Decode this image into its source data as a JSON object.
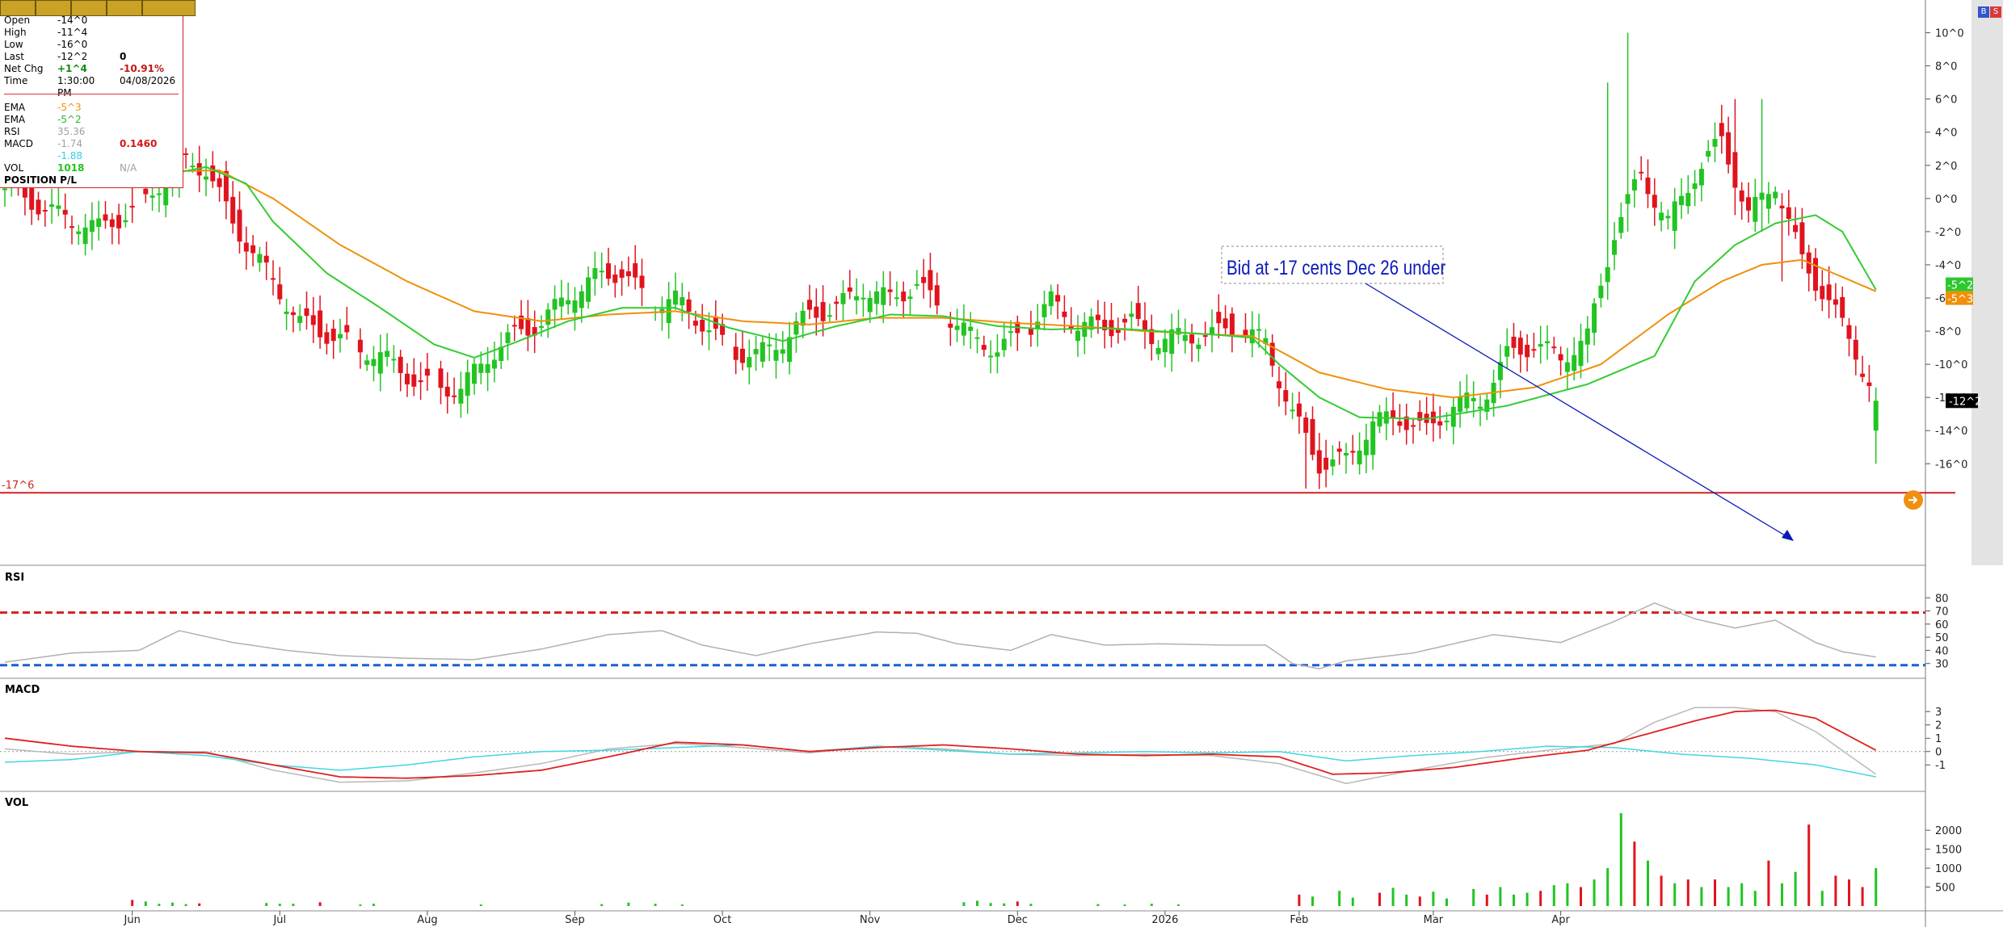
{
  "toolbar_buttons": [
    "",
    "",
    "",
    "",
    ""
  ],
  "top_right_buttons": [
    "B",
    "S"
  ],
  "quote": {
    "open": {
      "label": "Open",
      "value": "-14^0"
    },
    "high": {
      "label": "High",
      "value": "-11^4"
    },
    "low": {
      "label": "Low",
      "value": "-16^0"
    },
    "last": {
      "label": "Last",
      "value": "-12^2",
      "value2": "0"
    },
    "net_chg": {
      "label": "Net Chg",
      "value": "+1^4",
      "value2": "-10.91%"
    },
    "time": {
      "label": "Time",
      "value": "1:30:00 PM",
      "value2": "04/08/2026"
    },
    "ema1": {
      "label": "EMA",
      "value": "-5^3"
    },
    "ema2": {
      "label": "EMA",
      "value": "-5^2"
    },
    "rsi": {
      "label": "RSI",
      "value": "35.36"
    },
    "macd": {
      "label": "MACD",
      "value": "-1.74",
      "value2": "0.1460"
    },
    "macd_signal": {
      "value": "-1.88"
    },
    "vol": {
      "label": "VOL",
      "value": "1018",
      "value2": "N/A"
    },
    "position_pl": "POSITION P/L"
  },
  "colors": {
    "up": "#22c422",
    "down": "#e0141e",
    "ema_fast": "#33cc33",
    "ema_slow": "#f0900a",
    "macd": "#e02020",
    "signal": "#40d8e0",
    "hist": "#b8b8b8",
    "rsi": "#b0b0b0",
    "annotation": "#0a1ab8",
    "hline": "#d42020"
  },
  "chart_data": {
    "type": "candlestick",
    "x_labels": [
      "Jun",
      "Jul",
      "Aug",
      "Sep",
      "Oct",
      "Nov",
      "Dec",
      "2026",
      "Feb",
      "Mar",
      "Apr"
    ],
    "price_axis": {
      "ticks": [
        "10^0",
        "8^0",
        "6^0",
        "4^0",
        "2^0",
        "0^0",
        "-2^0",
        "-4^0",
        "-6^0",
        "-8^0",
        "-10^0",
        "-12^0",
        "-14^0",
        "-16^0"
      ],
      "range": [
        -19.2,
        11.0
      ]
    },
    "badges": {
      "last": "-12^2",
      "ema_fast": "-5^2",
      "ema_slow": "-5^3"
    },
    "order_line": {
      "label": "-17^6",
      "value": -17.75
    },
    "annotation": {
      "text": "Bid at -17 cents Dec 26 under"
    },
    "close_path": [
      [
        0,
        0.6
      ],
      [
        8,
        -1
      ],
      [
        14,
        -1.8
      ],
      [
        20,
        -0.6
      ],
      [
        26,
        2.4
      ],
      [
        30,
        1.8
      ],
      [
        34,
        -1.5
      ],
      [
        40,
        -5
      ],
      [
        44,
        -7.5
      ],
      [
        50,
        -8.5
      ],
      [
        56,
        -9.5
      ],
      [
        62,
        -11.2
      ],
      [
        68,
        -11.5
      ],
      [
        72,
        -9.5
      ],
      [
        76,
        -8.2
      ],
      [
        80,
        -7.5
      ],
      [
        84,
        -5.8
      ],
      [
        88,
        -4.8
      ],
      [
        92,
        -4.4
      ],
      [
        96,
        -6.3
      ],
      [
        100,
        -6.1
      ],
      [
        104,
        -7.5
      ],
      [
        108,
        -9.2
      ],
      [
        112,
        -9.5
      ],
      [
        116,
        -8.5
      ],
      [
        120,
        -7
      ],
      [
        124,
        -6.6
      ],
      [
        128,
        -5.4
      ],
      [
        132,
        -6.1
      ],
      [
        136,
        -5.2
      ],
      [
        140,
        -6.9
      ],
      [
        144,
        -8.3
      ],
      [
        148,
        -9.1
      ],
      [
        152,
        -8.1
      ],
      [
        156,
        -6.2
      ],
      [
        160,
        -7.6
      ],
      [
        164,
        -7.8
      ],
      [
        168,
        -7.5
      ],
      [
        172,
        -8.5
      ],
      [
        176,
        -8.3
      ],
      [
        180,
        -8.2
      ],
      [
        184,
        -7.8
      ],
      [
        188,
        -8.7
      ],
      [
        192,
        -13
      ],
      [
        196,
        -16
      ],
      [
        200,
        -15.8
      ],
      [
        204,
        -13.5
      ],
      [
        208,
        -13.2
      ],
      [
        212,
        -14.1
      ],
      [
        216,
        -12.4
      ],
      [
        220,
        -12.2
      ],
      [
        224,
        -9.5
      ],
      [
        228,
        -8.8
      ],
      [
        232,
        -9.6
      ],
      [
        236,
        -8.4
      ],
      [
        240,
        -2
      ],
      [
        244,
        1.5
      ],
      [
        248,
        -1.5
      ],
      [
        252,
        1.5
      ],
      [
        256,
        3.5
      ],
      [
        260,
        -1
      ],
      [
        264,
        1
      ],
      [
        268,
        -3.8
      ],
      [
        272,
        -6.2
      ],
      [
        276,
        -9.2
      ],
      [
        279,
        -12.3
      ]
    ],
    "ema_fast": [
      [
        0,
        1.2
      ],
      [
        20,
        1.1
      ],
      [
        30,
        1.9
      ],
      [
        36,
        0.9
      ],
      [
        40,
        -1.4
      ],
      [
        48,
        -4.5
      ],
      [
        56,
        -6.6
      ],
      [
        64,
        -8.8
      ],
      [
        70,
        -9.6
      ],
      [
        76,
        -8.7
      ],
      [
        84,
        -7.4
      ],
      [
        92,
        -6.6
      ],
      [
        100,
        -6.6
      ],
      [
        108,
        -7.8
      ],
      [
        116,
        -8.6
      ],
      [
        124,
        -7.7
      ],
      [
        132,
        -7
      ],
      [
        140,
        -7.1
      ],
      [
        148,
        -7.7
      ],
      [
        156,
        -7.9
      ],
      [
        164,
        -7.8
      ],
      [
        172,
        -8
      ],
      [
        180,
        -8.2
      ],
      [
        186,
        -8.4
      ],
      [
        190,
        -10
      ],
      [
        196,
        -12
      ],
      [
        202,
        -13.2
      ],
      [
        212,
        -13.3
      ],
      [
        224,
        -12.5
      ],
      [
        236,
        -11.2
      ],
      [
        246,
        -9.5
      ],
      [
        252,
        -5
      ],
      [
        258,
        -2.8
      ],
      [
        264,
        -1.5
      ],
      [
        270,
        -1
      ],
      [
        274,
        -2
      ],
      [
        279,
        -5.5
      ]
    ],
    "ema_slow": [
      [
        0,
        1.8
      ],
      [
        20,
        1.6
      ],
      [
        32,
        1.7
      ],
      [
        40,
        0
      ],
      [
        50,
        -2.8
      ],
      [
        60,
        -5
      ],
      [
        70,
        -6.8
      ],
      [
        80,
        -7.4
      ],
      [
        90,
        -7
      ],
      [
        100,
        -6.8
      ],
      [
        110,
        -7.4
      ],
      [
        120,
        -7.6
      ],
      [
        130,
        -7.2
      ],
      [
        140,
        -7.2
      ],
      [
        150,
        -7.5
      ],
      [
        160,
        -7.7
      ],
      [
        170,
        -8
      ],
      [
        180,
        -8.2
      ],
      [
        186,
        -8.3
      ],
      [
        196,
        -10.5
      ],
      [
        206,
        -11.5
      ],
      [
        216,
        -12
      ],
      [
        228,
        -11.4
      ],
      [
        238,
        -10
      ],
      [
        248,
        -7
      ],
      [
        256,
        -5
      ],
      [
        262,
        -4
      ],
      [
        268,
        -3.7
      ],
      [
        279,
        -5.6
      ]
    ],
    "rsi": {
      "label": "RSI",
      "ticks": [
        80,
        70,
        60,
        50,
        40,
        30
      ],
      "overbought": 70,
      "oversold": 30,
      "path": [
        [
          0,
          31
        ],
        [
          10,
          38
        ],
        [
          20,
          40
        ],
        [
          26,
          55
        ],
        [
          34,
          46
        ],
        [
          42,
          40
        ],
        [
          50,
          36
        ],
        [
          60,
          34
        ],
        [
          70,
          33
        ],
        [
          80,
          41
        ],
        [
          90,
          52
        ],
        [
          98,
          55
        ],
        [
          104,
          44
        ],
        [
          112,
          36
        ],
        [
          120,
          45
        ],
        [
          130,
          54
        ],
        [
          136,
          53
        ],
        [
          142,
          45
        ],
        [
          150,
          40
        ],
        [
          156,
          52
        ],
        [
          164,
          44
        ],
        [
          172,
          45
        ],
        [
          182,
          44
        ],
        [
          188,
          44
        ],
        [
          192,
          30
        ],
        [
          196,
          26
        ],
        [
          200,
          32
        ],
        [
          210,
          38
        ],
        [
          222,
          52
        ],
        [
          232,
          46
        ],
        [
          240,
          62
        ],
        [
          246,
          76
        ],
        [
          252,
          64
        ],
        [
          258,
          57
        ],
        [
          264,
          63
        ],
        [
          270,
          46
        ],
        [
          274,
          39
        ],
        [
          279,
          35
        ]
      ]
    },
    "macd": {
      "label": "MACD",
      "ticks": [
        "3",
        "2",
        "1",
        "0",
        "-1"
      ],
      "macd": [
        [
          0,
          1.0
        ],
        [
          10,
          0.4
        ],
        [
          20,
          0.0
        ],
        [
          30,
          -0.1
        ],
        [
          40,
          -1.0
        ],
        [
          50,
          -1.9
        ],
        [
          60,
          -2.0
        ],
        [
          70,
          -1.8
        ],
        [
          80,
          -1.4
        ],
        [
          90,
          -0.4
        ],
        [
          100,
          0.7
        ],
        [
          110,
          0.5
        ],
        [
          120,
          0.0
        ],
        [
          130,
          0.3
        ],
        [
          140,
          0.5
        ],
        [
          150,
          0.2
        ],
        [
          160,
          -0.2
        ],
        [
          170,
          -0.3
        ],
        [
          180,
          -0.2
        ],
        [
          190,
          -0.4
        ],
        [
          198,
          -1.7
        ],
        [
          206,
          -1.6
        ],
        [
          216,
          -1.2
        ],
        [
          226,
          -0.5
        ],
        [
          236,
          0.1
        ],
        [
          244,
          1.2
        ],
        [
          252,
          2.3
        ],
        [
          258,
          3.0
        ],
        [
          264,
          3.1
        ],
        [
          270,
          2.5
        ],
        [
          279,
          0.1
        ]
      ],
      "signal": [
        [
          0,
          -0.8
        ],
        [
          10,
          -0.6
        ],
        [
          20,
          0.0
        ],
        [
          30,
          -0.3
        ],
        [
          40,
          -1.0
        ],
        [
          50,
          -1.4
        ],
        [
          60,
          -1.0
        ],
        [
          70,
          -0.4
        ],
        [
          80,
          0.0
        ],
        [
          90,
          0.1
        ],
        [
          100,
          0.3
        ],
        [
          110,
          0.5
        ],
        [
          120,
          0.0
        ],
        [
          130,
          0.4
        ],
        [
          140,
          0.1
        ],
        [
          150,
          -0.2
        ],
        [
          160,
          -0.1
        ],
        [
          170,
          0.0
        ],
        [
          180,
          -0.1
        ],
        [
          190,
          0.0
        ],
        [
          200,
          -0.7
        ],
        [
          210,
          -0.3
        ],
        [
          220,
          0.0
        ],
        [
          230,
          0.4
        ],
        [
          240,
          0.3
        ],
        [
          250,
          -0.2
        ],
        [
          260,
          -0.5
        ],
        [
          270,
          -1.0
        ],
        [
          279,
          -1.9
        ]
      ],
      "hist": [
        [
          0,
          0.2
        ],
        [
          10,
          -0.2
        ],
        [
          20,
          0.0
        ],
        [
          30,
          0.0
        ],
        [
          40,
          -1.4
        ],
        [
          50,
          -2.3
        ],
        [
          60,
          -2.2
        ],
        [
          70,
          -1.6
        ],
        [
          80,
          -0.9
        ],
        [
          90,
          0.2
        ],
        [
          100,
          0.6
        ],
        [
          110,
          0.3
        ],
        [
          120,
          -0.1
        ],
        [
          130,
          0.4
        ],
        [
          140,
          0.2
        ],
        [
          150,
          -0.2
        ],
        [
          160,
          -0.3
        ],
        [
          170,
          -0.2
        ],
        [
          180,
          -0.3
        ],
        [
          190,
          -0.9
        ],
        [
          200,
          -2.4
        ],
        [
          210,
          -1.4
        ],
        [
          220,
          -0.5
        ],
        [
          230,
          0.1
        ],
        [
          240,
          0.6
        ],
        [
          246,
          2.2
        ],
        [
          252,
          3.3
        ],
        [
          258,
          3.3
        ],
        [
          264,
          3.0
        ],
        [
          270,
          1.5
        ],
        [
          279,
          -1.7
        ]
      ]
    },
    "volume": {
      "label": "VOL",
      "ticks": [
        "2000",
        "1500",
        "1000",
        "500"
      ],
      "bars": [
        [
          19,
          160,
          "d"
        ],
        [
          21,
          120,
          "u"
        ],
        [
          23,
          60,
          "u"
        ],
        [
          25,
          90,
          "u"
        ],
        [
          27,
          50,
          "u"
        ],
        [
          29,
          70,
          "d"
        ],
        [
          39,
          80,
          "u"
        ],
        [
          41,
          60,
          "u"
        ],
        [
          43,
          60,
          "u"
        ],
        [
          47,
          100,
          "d"
        ],
        [
          53,
          40,
          "u"
        ],
        [
          55,
          60,
          "u"
        ],
        [
          71,
          40,
          "u"
        ],
        [
          89,
          50,
          "u"
        ],
        [
          93,
          90,
          "u"
        ],
        [
          97,
          60,
          "u"
        ],
        [
          101,
          40,
          "u"
        ],
        [
          143,
          100,
          "u"
        ],
        [
          145,
          140,
          "u"
        ],
        [
          147,
          80,
          "u"
        ],
        [
          149,
          70,
          "u"
        ],
        [
          151,
          120,
          "d"
        ],
        [
          153,
          60,
          "u"
        ],
        [
          163,
          50,
          "u"
        ],
        [
          167,
          40,
          "u"
        ],
        [
          171,
          60,
          "u"
        ],
        [
          175,
          40,
          "u"
        ],
        [
          193,
          300,
          "d"
        ],
        [
          195,
          250,
          "u"
        ],
        [
          199,
          400,
          "u"
        ],
        [
          201,
          220,
          "u"
        ],
        [
          205,
          350,
          "d"
        ],
        [
          207,
          480,
          "u"
        ],
        [
          209,
          300,
          "u"
        ],
        [
          211,
          250,
          "d"
        ],
        [
          213,
          380,
          "u"
        ],
        [
          215,
          200,
          "u"
        ],
        [
          219,
          450,
          "u"
        ],
        [
          221,
          300,
          "d"
        ],
        [
          223,
          500,
          "u"
        ],
        [
          225,
          300,
          "u"
        ],
        [
          227,
          350,
          "u"
        ],
        [
          229,
          400,
          "d"
        ],
        [
          231,
          550,
          "u"
        ],
        [
          233,
          600,
          "u"
        ],
        [
          235,
          500,
          "d"
        ],
        [
          237,
          700,
          "u"
        ],
        [
          239,
          1000,
          "u"
        ],
        [
          241,
          2450,
          "u"
        ],
        [
          243,
          1700,
          "d"
        ],
        [
          245,
          1200,
          "u"
        ],
        [
          247,
          800,
          "d"
        ],
        [
          249,
          600,
          "u"
        ],
        [
          251,
          700,
          "d"
        ],
        [
          253,
          500,
          "u"
        ],
        [
          255,
          700,
          "d"
        ],
        [
          257,
          500,
          "u"
        ],
        [
          259,
          600,
          "u"
        ],
        [
          261,
          400,
          "u"
        ],
        [
          263,
          1200,
          "d"
        ],
        [
          265,
          600,
          "u"
        ],
        [
          267,
          900,
          "u"
        ],
        [
          269,
          2150,
          "d"
        ],
        [
          271,
          400,
          "u"
        ],
        [
          273,
          800,
          "d"
        ],
        [
          275,
          700,
          "d"
        ],
        [
          277,
          500,
          "d"
        ],
        [
          279,
          1000,
          "u"
        ]
      ]
    }
  }
}
